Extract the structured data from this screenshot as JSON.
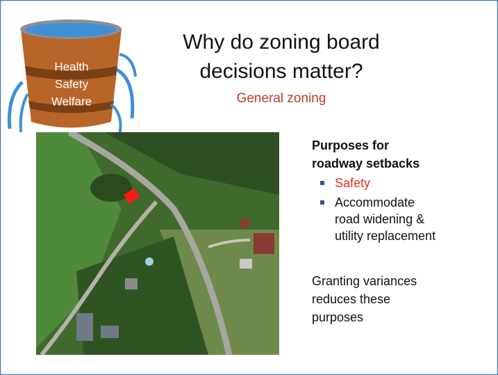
{
  "bucket": {
    "lines": [
      "Health",
      "Safety",
      "Welfare"
    ]
  },
  "title": {
    "lines": [
      "Why do zoning board",
      "decisions matter?"
    ],
    "subtitle": "General zoning"
  },
  "content": {
    "heading": {
      "lines": [
        "Purposes for",
        "roadway setbacks"
      ]
    },
    "bullets": [
      {
        "lines": [
          "Safety"
        ]
      },
      {
        "lines": [
          "Accommodate",
          "road widening &",
          "utility replacement"
        ]
      }
    ],
    "note": {
      "lines": [
        "Granting variances",
        "reduces these",
        "purposes"
      ]
    }
  }
}
